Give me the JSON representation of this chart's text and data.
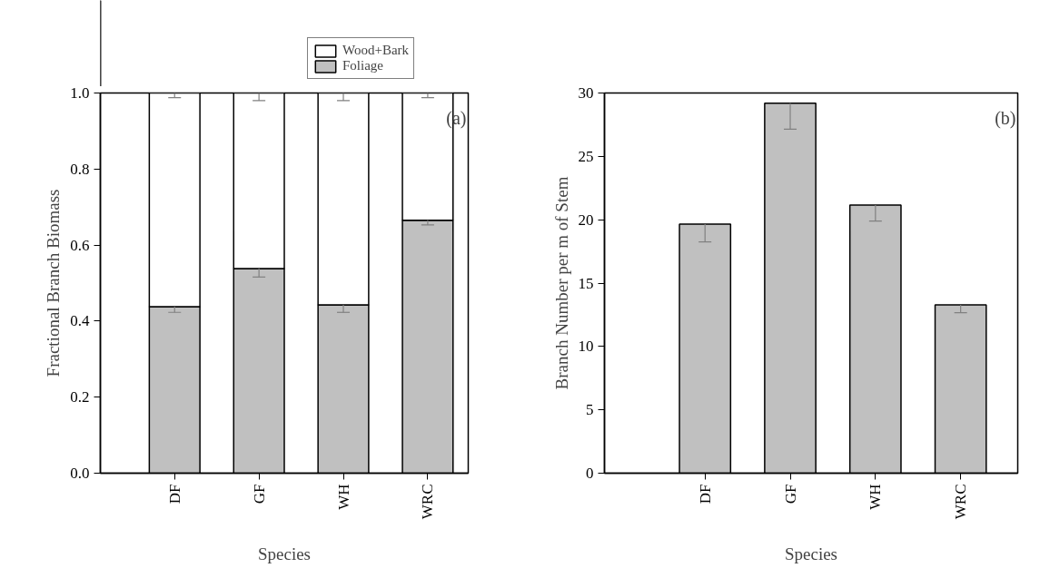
{
  "chart_data": [
    {
      "type": "bar",
      "stacked": true,
      "ylabel": "Fractional Branch Biomass",
      "xlabel": "Species",
      "categories": [
        "DF",
        "GF",
        "WH",
        "WRC"
      ],
      "ylim": [
        0,
        1
      ],
      "yticks": [
        {
          "value": 0,
          "label": "0.0"
        },
        {
          "value": 0.2,
          "label": "0.2"
        },
        {
          "value": 0.4,
          "label": "0.4"
        },
        {
          "value": 0.6,
          "label": "0.6"
        },
        {
          "value": 0.8,
          "label": "0.8"
        },
        {
          "value": 1,
          "label": "1.0"
        }
      ],
      "legend": "top",
      "grid": false,
      "annotations": [
        "(a)"
      ],
      "series": [
        {
          "name": "Foliage",
          "color": "#c0c0c0",
          "values": [
            0.438,
            0.538,
            0.443,
            0.665
          ],
          "errors": [
            [
              0.423,
              0.438
            ],
            [
              0.516,
              0.538
            ],
            [
              0.423,
              0.443
            ],
            [
              0.653,
              0.665
            ]
          ]
        },
        {
          "name": "Wood+Bark",
          "color": "#ffffff",
          "values": [
            0.562,
            0.462,
            0.557,
            0.335
          ],
          "errors": [
            [
              0.988,
              1.0
            ],
            [
              0.98,
              1.0
            ],
            [
              0.98,
              1.0
            ],
            [
              0.988,
              1.0
            ]
          ]
        }
      ]
    },
    {
      "type": "bar",
      "ylabel": "Branch Number per m of Stem",
      "xlabel": "Species",
      "categories": [
        "DF",
        "GF",
        "WH",
        "WRC"
      ],
      "ylim": [
        0,
        30
      ],
      "yticks": [
        0,
        5,
        10,
        15,
        20,
        25,
        30
      ],
      "grid": false,
      "annotations": [
        "(b)"
      ],
      "series": [
        {
          "color": "#c0c0c0",
          "values": [
            19.66,
            29.2,
            21.15,
            13.28
          ],
          "errors": [
            [
              18.25,
              19.66
            ],
            [
              27.15,
              29.2
            ],
            [
              19.9,
              21.15
            ],
            [
              12.67,
              13.28
            ]
          ]
        }
      ]
    }
  ]
}
